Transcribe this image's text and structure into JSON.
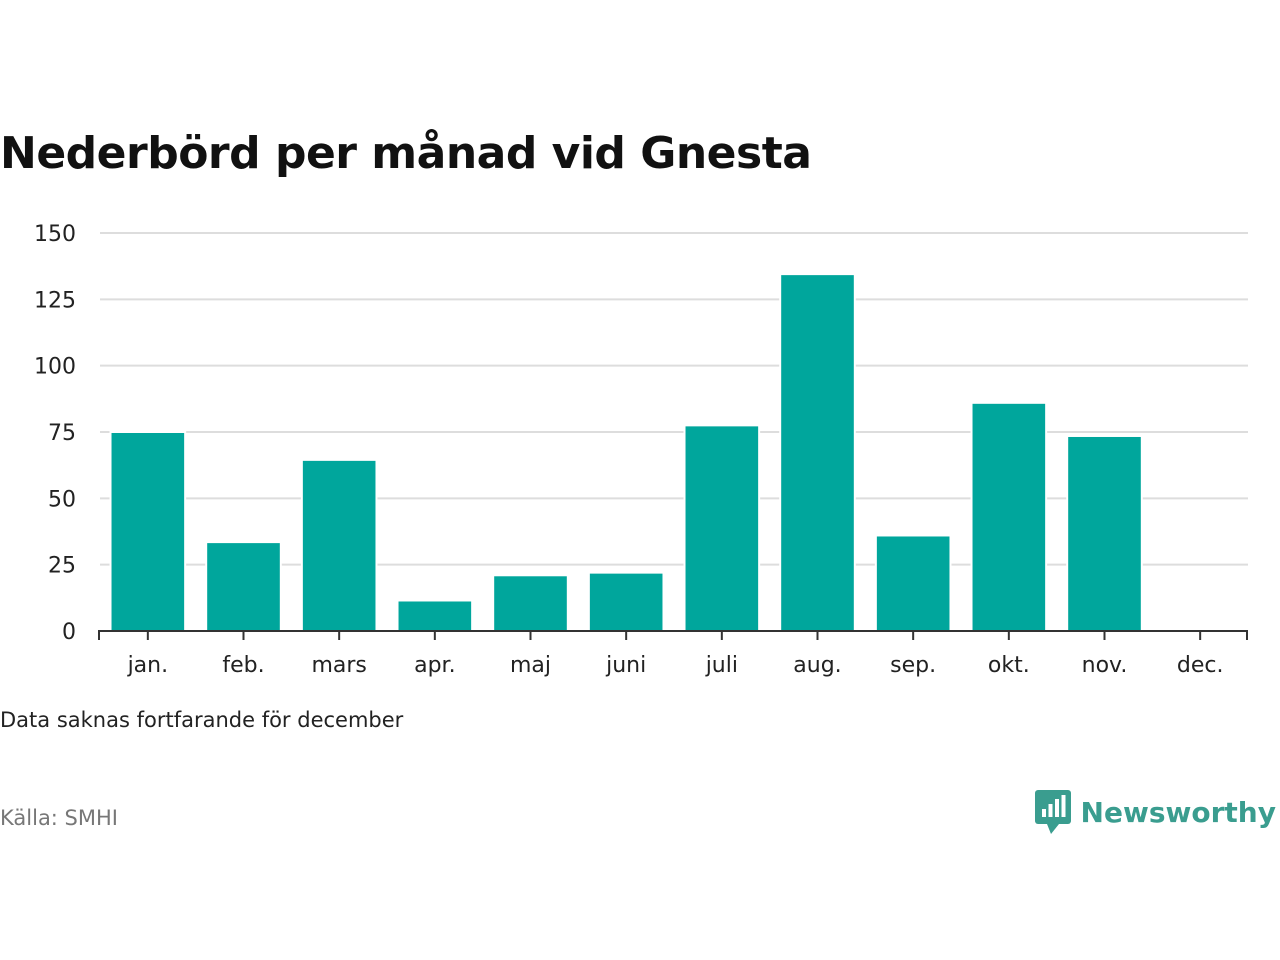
{
  "title": "Nederbörd per månad vid Gnesta",
  "note": "Data saknas fortfarande för december",
  "source": "Källa: SMHI",
  "brand": {
    "name": "Newsworthy",
    "color": "#3a9d8f",
    "icon": "newsworthy-chart-bubble-icon"
  },
  "chart_data": {
    "type": "bar",
    "title": "Nederbörd per månad vid Gnesta",
    "xlabel": "",
    "ylabel": "",
    "categories": [
      "jan.",
      "feb.",
      "mars",
      "apr.",
      "maj",
      "juni",
      "juli",
      "aug.",
      "sep.",
      "okt.",
      "nov.",
      "dec."
    ],
    "values": [
      75,
      33.5,
      64.5,
      11.5,
      21,
      22,
      77.5,
      134.5,
      36,
      86,
      73.5,
      null
    ],
    "ylim": [
      0,
      150
    ],
    "yticks": [
      "0",
      "25",
      "50",
      "75",
      "100",
      "125",
      "150"
    ],
    "grid": true,
    "bar_color": "#00a69c",
    "grid_color": "#dddddd",
    "axis_color": "#333333"
  }
}
